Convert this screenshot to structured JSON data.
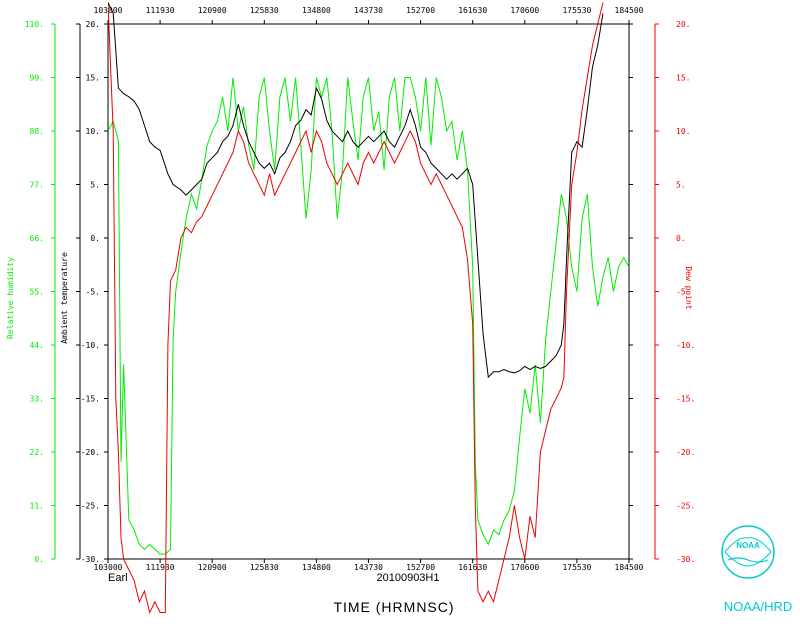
{
  "chart_data": {
    "type": "line",
    "storm": "Earl",
    "flight_id": "20100903H1",
    "xlabel": "TIME (HRMNSC)",
    "x_ticks": [
      "103000",
      "111930",
      "120900",
      "125830",
      "134800",
      "143730",
      "152700",
      "161630",
      "170600",
      "175530",
      "184500"
    ],
    "bottom_x_ticks_visible": [
      "103000",
      "111930",
      "120900",
      "125830",
      "134800",
      "143730",
      "152700",
      "161630",
      "170600",
      "175530",
      "184500"
    ],
    "axes": {
      "temperature": {
        "label": "Ambient temperature",
        "ylim": [
          -30,
          20
        ],
        "ticks": [
          "20.",
          "15.",
          "10.",
          "5.",
          "0.",
          "-5.",
          "-10.",
          "-15.",
          "-20.",
          "-25.",
          "-30."
        ],
        "color": "#000000"
      },
      "rh": {
        "label": "Relative humidity",
        "ylim": [
          0,
          110
        ],
        "ticks": [
          "110.",
          "99.",
          "88.",
          "77.",
          "66.",
          "55.",
          "44.",
          "33.",
          "22.",
          "11.",
          "0."
        ],
        "color": "#00ee00"
      },
      "dewpoint": {
        "label": "Dew point",
        "ylim": [
          -30,
          20
        ],
        "ticks": [
          "20.",
          "15.",
          "10.",
          "5.",
          "0.",
          "-5.",
          "-10.",
          "-15.",
          "-20.",
          "-25.",
          "-30."
        ],
        "color": "#ee0000"
      }
    },
    "x_fraction_note": "x values are fractions of the time axis span (0 = 103000, 1 = 184500)",
    "series": [
      {
        "name": "Ambient temperature",
        "axis": "temperature",
        "color": "#000000",
        "points": [
          [
            0.0,
            22
          ],
          [
            0.01,
            21
          ],
          [
            0.02,
            14
          ],
          [
            0.03,
            13.5
          ],
          [
            0.04,
            13.2
          ],
          [
            0.05,
            12.8
          ],
          [
            0.06,
            12.0
          ],
          [
            0.07,
            10.5
          ],
          [
            0.08,
            9.0
          ],
          [
            0.09,
            8.5
          ],
          [
            0.1,
            8.2
          ],
          [
            0.115,
            6.0
          ],
          [
            0.125,
            5.0
          ],
          [
            0.14,
            4.5
          ],
          [
            0.15,
            4.0
          ],
          [
            0.16,
            4.5
          ],
          [
            0.17,
            5.0
          ],
          [
            0.18,
            5.5
          ],
          [
            0.19,
            7.0
          ],
          [
            0.2,
            7.5
          ],
          [
            0.21,
            8.0
          ],
          [
            0.22,
            9.0
          ],
          [
            0.23,
            9.5
          ],
          [
            0.24,
            10.5
          ],
          [
            0.25,
            12.5
          ],
          [
            0.26,
            10.5
          ],
          [
            0.27,
            9.0
          ],
          [
            0.28,
            8.0
          ],
          [
            0.29,
            7.0
          ],
          [
            0.3,
            6.5
          ],
          [
            0.31,
            7.0
          ],
          [
            0.32,
            6.0
          ],
          [
            0.33,
            7.5
          ],
          [
            0.34,
            8.0
          ],
          [
            0.35,
            9.0
          ],
          [
            0.36,
            10.5
          ],
          [
            0.37,
            11.0
          ],
          [
            0.38,
            12.0
          ],
          [
            0.39,
            11.5
          ],
          [
            0.4,
            14.0
          ],
          [
            0.41,
            13.0
          ],
          [
            0.42,
            11.0
          ],
          [
            0.43,
            10.0
          ],
          [
            0.44,
            9.5
          ],
          [
            0.45,
            9.0
          ],
          [
            0.46,
            10.0
          ],
          [
            0.47,
            9.0
          ],
          [
            0.48,
            8.5
          ],
          [
            0.49,
            9.0
          ],
          [
            0.5,
            9.5
          ],
          [
            0.51,
            9.0
          ],
          [
            0.52,
            9.5
          ],
          [
            0.53,
            10.0
          ],
          [
            0.54,
            9.0
          ],
          [
            0.55,
            8.5
          ],
          [
            0.56,
            9.5
          ],
          [
            0.57,
            10.5
          ],
          [
            0.58,
            12.0
          ],
          [
            0.59,
            10.5
          ],
          [
            0.6,
            8.5
          ],
          [
            0.61,
            8.0
          ],
          [
            0.62,
            7.0
          ],
          [
            0.63,
            6.5
          ],
          [
            0.64,
            6.0
          ],
          [
            0.65,
            5.5
          ],
          [
            0.66,
            6.0
          ],
          [
            0.67,
            5.5
          ],
          [
            0.68,
            6.0
          ],
          [
            0.69,
            6.5
          ],
          [
            0.7,
            5.0
          ],
          [
            0.71,
            -2.0
          ],
          [
            0.72,
            -9.0
          ],
          [
            0.73,
            -13.0
          ],
          [
            0.74,
            -12.5
          ],
          [
            0.75,
            -12.5
          ],
          [
            0.76,
            -12.3
          ],
          [
            0.77,
            -12.5
          ],
          [
            0.78,
            -12.6
          ],
          [
            0.79,
            -12.4
          ],
          [
            0.8,
            -12.0
          ],
          [
            0.81,
            -12.3
          ],
          [
            0.82,
            -12.0
          ],
          [
            0.83,
            -12.2
          ],
          [
            0.84,
            -12.0
          ],
          [
            0.85,
            -11.5
          ],
          [
            0.86,
            -11.0
          ],
          [
            0.87,
            -10.0
          ],
          [
            0.875,
            -8.0
          ],
          [
            0.88,
            -2.0
          ],
          [
            0.89,
            8.0
          ],
          [
            0.9,
            9.0
          ],
          [
            0.91,
            8.5
          ],
          [
            0.92,
            12.0
          ],
          [
            0.93,
            16.0
          ],
          [
            0.94,
            18.0
          ],
          [
            0.95,
            21.0
          ]
        ]
      },
      {
        "name": "Relative humidity",
        "axis": "rh",
        "color": "#00ee00",
        "points": [
          [
            0.0,
            88
          ],
          [
            0.01,
            90
          ],
          [
            0.02,
            86
          ],
          [
            0.025,
            20
          ],
          [
            0.03,
            40
          ],
          [
            0.04,
            8
          ],
          [
            0.05,
            6
          ],
          [
            0.06,
            3
          ],
          [
            0.07,
            2
          ],
          [
            0.08,
            3
          ],
          [
            0.09,
            2
          ],
          [
            0.1,
            1
          ],
          [
            0.11,
            1
          ],
          [
            0.12,
            2
          ],
          [
            0.125,
            45
          ],
          [
            0.13,
            55
          ],
          [
            0.14,
            63
          ],
          [
            0.15,
            70
          ],
          [
            0.16,
            75
          ],
          [
            0.17,
            72
          ],
          [
            0.18,
            78
          ],
          [
            0.19,
            85
          ],
          [
            0.2,
            88
          ],
          [
            0.21,
            90
          ],
          [
            0.22,
            95
          ],
          [
            0.23,
            88
          ],
          [
            0.24,
            99
          ],
          [
            0.25,
            88
          ],
          [
            0.26,
            93
          ],
          [
            0.27,
            85
          ],
          [
            0.28,
            80
          ],
          [
            0.29,
            95
          ],
          [
            0.3,
            99
          ],
          [
            0.31,
            88
          ],
          [
            0.32,
            80
          ],
          [
            0.33,
            95
          ],
          [
            0.34,
            99
          ],
          [
            0.35,
            90
          ],
          [
            0.36,
            99
          ],
          [
            0.37,
            85
          ],
          [
            0.38,
            70
          ],
          [
            0.39,
            80
          ],
          [
            0.4,
            99
          ],
          [
            0.41,
            95
          ],
          [
            0.42,
            99
          ],
          [
            0.43,
            88
          ],
          [
            0.44,
            70
          ],
          [
            0.45,
            80
          ],
          [
            0.46,
            99
          ],
          [
            0.47,
            90
          ],
          [
            0.48,
            82
          ],
          [
            0.49,
            95
          ],
          [
            0.5,
            99
          ],
          [
            0.51,
            88
          ],
          [
            0.52,
            92
          ],
          [
            0.53,
            80
          ],
          [
            0.54,
            95
          ],
          [
            0.55,
            99
          ],
          [
            0.56,
            88
          ],
          [
            0.57,
            99
          ],
          [
            0.58,
            99
          ],
          [
            0.59,
            95
          ],
          [
            0.6,
            88
          ],
          [
            0.61,
            99
          ],
          [
            0.62,
            85
          ],
          [
            0.63,
            99
          ],
          [
            0.64,
            95
          ],
          [
            0.65,
            88
          ],
          [
            0.66,
            90
          ],
          [
            0.67,
            82
          ],
          [
            0.68,
            88
          ],
          [
            0.69,
            80
          ],
          [
            0.7,
            60
          ],
          [
            0.705,
            20
          ],
          [
            0.71,
            8
          ],
          [
            0.72,
            5
          ],
          [
            0.73,
            3
          ],
          [
            0.74,
            6
          ],
          [
            0.75,
            5
          ],
          [
            0.76,
            8
          ],
          [
            0.77,
            10
          ],
          [
            0.78,
            14
          ],
          [
            0.79,
            25
          ],
          [
            0.8,
            35
          ],
          [
            0.81,
            30
          ],
          [
            0.82,
            40
          ],
          [
            0.83,
            28
          ],
          [
            0.84,
            45
          ],
          [
            0.85,
            55
          ],
          [
            0.86,
            65
          ],
          [
            0.87,
            75
          ],
          [
            0.88,
            70
          ],
          [
            0.89,
            60
          ],
          [
            0.9,
            55
          ],
          [
            0.91,
            70
          ],
          [
            0.92,
            75
          ],
          [
            0.93,
            60
          ],
          [
            0.94,
            52
          ],
          [
            0.95,
            58
          ],
          [
            0.96,
            62
          ],
          [
            0.97,
            55
          ],
          [
            0.98,
            60
          ],
          [
            0.99,
            62
          ],
          [
            1.0,
            60
          ]
        ]
      },
      {
        "name": "Dew point",
        "axis": "dewpoint",
        "color": "#ee0000",
        "points": [
          [
            0.0,
            22
          ],
          [
            0.01,
            10
          ],
          [
            0.015,
            -15
          ],
          [
            0.02,
            -20
          ],
          [
            0.025,
            -28
          ],
          [
            0.03,
            -30
          ],
          [
            0.04,
            -31
          ],
          [
            0.05,
            -32
          ],
          [
            0.06,
            -34
          ],
          [
            0.07,
            -33
          ],
          [
            0.08,
            -35
          ],
          [
            0.09,
            -34
          ],
          [
            0.1,
            -35
          ],
          [
            0.11,
            -35
          ],
          [
            0.115,
            -10
          ],
          [
            0.12,
            -4
          ],
          [
            0.13,
            -3
          ],
          [
            0.14,
            0
          ],
          [
            0.15,
            1
          ],
          [
            0.16,
            0.5
          ],
          [
            0.17,
            1.5
          ],
          [
            0.18,
            2
          ],
          [
            0.19,
            3
          ],
          [
            0.2,
            4
          ],
          [
            0.21,
            5
          ],
          [
            0.22,
            6
          ],
          [
            0.23,
            7
          ],
          [
            0.24,
            8
          ],
          [
            0.25,
            10
          ],
          [
            0.26,
            9
          ],
          [
            0.27,
            7
          ],
          [
            0.28,
            6
          ],
          [
            0.29,
            5
          ],
          [
            0.3,
            4
          ],
          [
            0.31,
            6
          ],
          [
            0.32,
            4
          ],
          [
            0.33,
            5
          ],
          [
            0.34,
            6
          ],
          [
            0.35,
            7
          ],
          [
            0.36,
            8
          ],
          [
            0.37,
            9
          ],
          [
            0.38,
            10
          ],
          [
            0.39,
            8
          ],
          [
            0.4,
            10
          ],
          [
            0.41,
            9
          ],
          [
            0.42,
            7
          ],
          [
            0.43,
            6
          ],
          [
            0.44,
            5
          ],
          [
            0.45,
            6
          ],
          [
            0.46,
            7
          ],
          [
            0.47,
            6
          ],
          [
            0.48,
            5
          ],
          [
            0.49,
            7
          ],
          [
            0.5,
            8
          ],
          [
            0.51,
            7
          ],
          [
            0.52,
            8
          ],
          [
            0.53,
            9
          ],
          [
            0.54,
            8
          ],
          [
            0.55,
            7
          ],
          [
            0.56,
            8
          ],
          [
            0.57,
            9
          ],
          [
            0.58,
            10
          ],
          [
            0.59,
            9
          ],
          [
            0.6,
            7
          ],
          [
            0.61,
            6
          ],
          [
            0.62,
            5
          ],
          [
            0.63,
            6
          ],
          [
            0.64,
            5
          ],
          [
            0.65,
            4
          ],
          [
            0.66,
            3
          ],
          [
            0.67,
            2
          ],
          [
            0.68,
            1
          ],
          [
            0.69,
            -2
          ],
          [
            0.7,
            -8
          ],
          [
            0.705,
            -25
          ],
          [
            0.71,
            -33
          ],
          [
            0.72,
            -34
          ],
          [
            0.73,
            -33
          ],
          [
            0.74,
            -34
          ],
          [
            0.75,
            -32
          ],
          [
            0.76,
            -30
          ],
          [
            0.77,
            -28
          ],
          [
            0.78,
            -25
          ],
          [
            0.79,
            -28
          ],
          [
            0.8,
            -30
          ],
          [
            0.81,
            -26
          ],
          [
            0.82,
            -28
          ],
          [
            0.83,
            -20
          ],
          [
            0.84,
            -18
          ],
          [
            0.85,
            -16
          ],
          [
            0.86,
            -15
          ],
          [
            0.87,
            -14
          ],
          [
            0.875,
            -13
          ],
          [
            0.88,
            -5
          ],
          [
            0.89,
            5
          ],
          [
            0.9,
            8
          ],
          [
            0.91,
            12
          ],
          [
            0.92,
            15
          ],
          [
            0.93,
            18
          ],
          [
            0.94,
            20
          ],
          [
            0.95,
            22
          ]
        ]
      }
    ]
  },
  "logo": {
    "org_text": "NOAA/HRD",
    "seal_text": "NOAA"
  }
}
